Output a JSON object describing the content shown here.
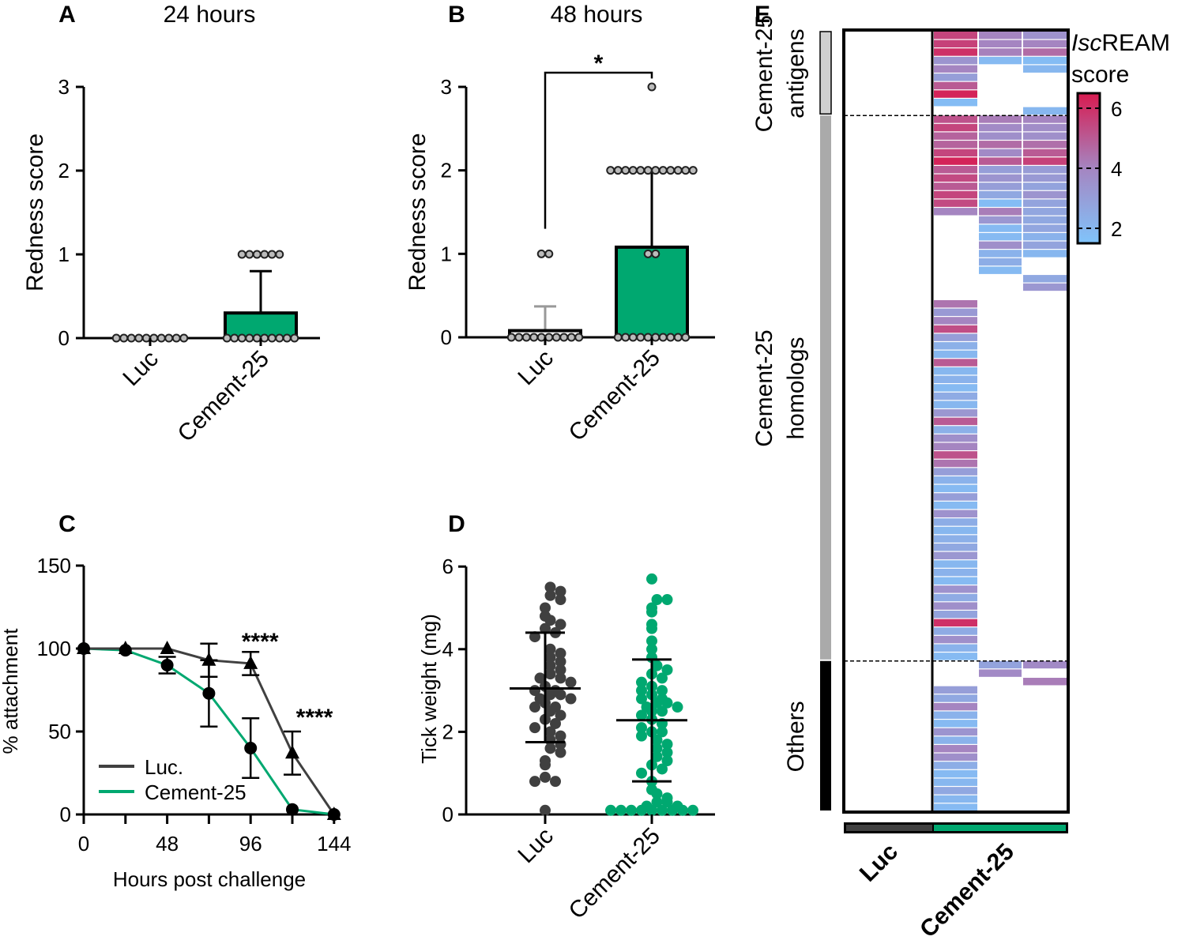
{
  "chart_data": [
    {
      "panel": "A",
      "type": "bar",
      "title": "24 hours",
      "ylabel": "Redness score",
      "ylim": [
        0,
        3
      ],
      "yticks": [
        "0",
        "1",
        "2",
        "3"
      ],
      "categories": [
        "Luc",
        "Cement-25"
      ],
      "means": [
        0,
        0.3
      ],
      "sd_upper": [
        0,
        0.8
      ],
      "points": [
        [
          0,
          0,
          0,
          0,
          0,
          0,
          0,
          0,
          0,
          0
        ],
        [
          0,
          0,
          0,
          0,
          0,
          0,
          0,
          0,
          0,
          0,
          1,
          1,
          1,
          1,
          1,
          1
        ]
      ],
      "colors": [
        "#ffffff",
        "#00a870"
      ]
    },
    {
      "panel": "B",
      "type": "bar",
      "title": "48 hours",
      "ylabel": "Redness score",
      "ylim": [
        0,
        3
      ],
      "yticks": [
        "0",
        "1",
        "2",
        "3"
      ],
      "categories": [
        "Luc",
        "Cement-25"
      ],
      "means": [
        0.08,
        1.08
      ],
      "sd_upper": [
        0.37,
        2.0
      ],
      "points": [
        [
          0,
          0,
          0,
          0,
          0,
          0,
          0,
          0,
          0,
          0,
          1,
          1
        ],
        [
          0,
          0,
          0,
          0,
          0,
          0,
          0,
          0,
          0,
          0,
          1,
          1,
          2,
          2,
          2,
          2,
          2,
          2,
          2,
          2,
          2,
          2,
          2,
          2,
          3
        ]
      ],
      "significance": "*",
      "colors": [
        "#ffffff",
        "#00a870"
      ]
    },
    {
      "panel": "C",
      "type": "line",
      "xlabel": "Hours post challenge",
      "ylabel": "% attachment",
      "xlim": [
        0,
        144
      ],
      "ylim": [
        0,
        150
      ],
      "xticks": [
        "0",
        "48",
        "96",
        "144"
      ],
      "yticks": [
        "0",
        "50",
        "100",
        "150"
      ],
      "x": [
        0,
        24,
        48,
        72,
        96,
        120,
        144
      ],
      "series": [
        {
          "name": "Luc.",
          "marker": "triangle",
          "color": "#404040",
          "values": [
            100,
            100,
            100,
            93,
            91,
            37,
            0
          ],
          "errors": [
            0,
            0,
            0,
            10,
            7,
            13,
            0
          ]
        },
        {
          "name": "Cement-25",
          "marker": "circle",
          "color": "#00a870",
          "values": [
            100,
            99,
            90,
            73,
            40,
            3,
            0
          ],
          "errors": [
            0,
            0,
            5,
            20,
            18,
            0,
            0
          ]
        }
      ],
      "annotations": [
        {
          "text": "****",
          "x": 96
        },
        {
          "text": "****",
          "x": 120
        }
      ],
      "legend": "bottom-left"
    },
    {
      "panel": "D",
      "type": "scatter",
      "ylabel": "Tick weight (mg)",
      "ylim": [
        0,
        6
      ],
      "yticks": [
        "0",
        "2",
        "4",
        "6"
      ],
      "categories": [
        "Luc",
        "Cement-25"
      ],
      "means": [
        3.05,
        2.28
      ],
      "sd": [
        [
          1.75,
          4.4
        ],
        [
          0.8,
          3.75
        ]
      ],
      "colors": [
        "#404040",
        "#00a870"
      ],
      "points": [
        [
          5.5,
          5.4,
          5.3,
          5.2,
          5.0,
          4.8,
          4.7,
          4.6,
          4.5,
          4.4,
          4.3,
          4.0,
          3.9,
          3.8,
          3.7,
          3.6,
          3.5,
          3.4,
          3.3,
          3.3,
          3.2,
          3.1,
          3.0,
          3.0,
          2.9,
          2.9,
          2.8,
          2.8,
          2.7,
          2.6,
          2.6,
          2.5,
          2.4,
          2.3,
          2.2,
          2.1,
          2.0,
          1.9,
          1.8,
          1.7,
          1.6,
          1.5,
          1.3,
          1.2,
          0.9,
          0.8,
          0.8,
          0.1
        ],
        [
          5.7,
          5.2,
          5.2,
          5.0,
          4.9,
          4.6,
          4.5,
          4.2,
          4.0,
          3.8,
          3.6,
          3.5,
          3.4,
          3.3,
          3.2,
          3.1,
          3.0,
          3.0,
          2.9,
          2.8,
          2.8,
          2.7,
          2.7,
          2.6,
          2.6,
          2.5,
          2.5,
          2.4,
          2.3,
          2.2,
          2.1,
          2.0,
          2.0,
          1.9,
          1.8,
          1.7,
          1.6,
          1.5,
          1.4,
          1.3,
          1.2,
          1.1,
          1.0,
          0.8,
          0.6,
          0.5,
          0.4,
          0.3,
          0.3,
          0.2,
          0.2,
          0.1,
          0.1,
          0.1,
          0.1,
          0.1,
          0.1,
          0.1,
          0.1,
          0.1
        ]
      ]
    },
    {
      "panel": "E",
      "type": "heatmap",
      "legend_title_italic": "Isc",
      "legend_title_rest": "REAM",
      "legend_title_line2": "score",
      "colorbar_ticks": [
        "2",
        "4",
        "6"
      ],
      "colorbar_range": [
        1.5,
        6.5
      ],
      "column_groups": [
        "Luc",
        "Cement-25"
      ],
      "column_group_colors": [
        "#404040",
        "#00a870"
      ],
      "sections": [
        {
          "label_line1": "Cement-25",
          "label_line2": "antigens",
          "rows": 10,
          "bar_color": "#d0d0d0",
          "columns": [
            [
              5.5,
              5.6,
              6.0,
              3.4,
              4.0,
              3.0,
              5.0,
              6.3,
              1.8,
              null
            ],
            [
              4.0,
              4.0,
              4.1,
              1.9
            ],
            [
              3.5,
              4.0,
              4.6,
              1.8,
              2.0,
              null,
              null,
              null,
              null,
              2.0
            ]
          ]
        },
        {
          "label_line1": "Cement-25",
          "label_line2": "homologs",
          "rows": 65,
          "bar_color": "#aaaaaa",
          "columns": [
            [
              5.2,
              5.5,
              4.8,
              4.8,
              5.5,
              6.3,
              5.0,
              5.4,
              5.0,
              5.5,
              5.4,
              4.0,
              null,
              null,
              null,
              null,
              null,
              null,
              null,
              null,
              null,
              null,
              4.4,
              3.2,
              4.0,
              5.3,
              3.0,
              2.3,
              2.0,
              5.0,
              2.0,
              2.2,
              1.9,
              2.5,
              2.0,
              3.3,
              5.0,
              2.3,
              3.6,
              4.0,
              5.2,
              4.4,
              3.0,
              2.2,
              1.9,
              3.0,
              1.9,
              3.5,
              2.4,
              2.0,
              2.3,
              2.6,
              3.3,
              2.0,
              2.2,
              1.9,
              3.5,
              2.5,
              3.6,
              2.8,
              6.0,
              2.5,
              3.6,
              2.2,
              1.9
            ],
            [
              4.2,
              3.8,
              3.6,
              4.6,
              3.8,
              5.0,
              3.0,
              3.4,
              3.0,
              2.6,
              1.8,
              4.2,
              3.3,
              1.9,
              1.9,
              3.6,
              2.2,
              2.4,
              1.9
            ],
            [
              4.0,
              3.7,
              3.6,
              4.5,
              5.0,
              5.6,
              3.1,
              3.2,
              2.8,
              3.4,
              2.8,
              2.7,
              2.6,
              2.7,
              2.2,
              2.8,
              2.0,
              null,
              null,
              2.6,
              3.3
            ]
          ]
        },
        {
          "label_line1": "Others",
          "label_line2": "",
          "rows": 18,
          "bar_color": "#000000",
          "columns": [
            [
              null,
              null,
              null,
              3.0,
              2.6,
              4.0,
              2.2,
              1.9,
              3.4,
              2.2,
              4.0,
              3.6,
              2.4,
              1.9,
              2.0,
              2.6,
              2.0,
              1.9
            ],
            [
              2.8,
              3.8
            ],
            [
              3.8,
              null,
              4.2
            ]
          ]
        }
      ]
    }
  ]
}
